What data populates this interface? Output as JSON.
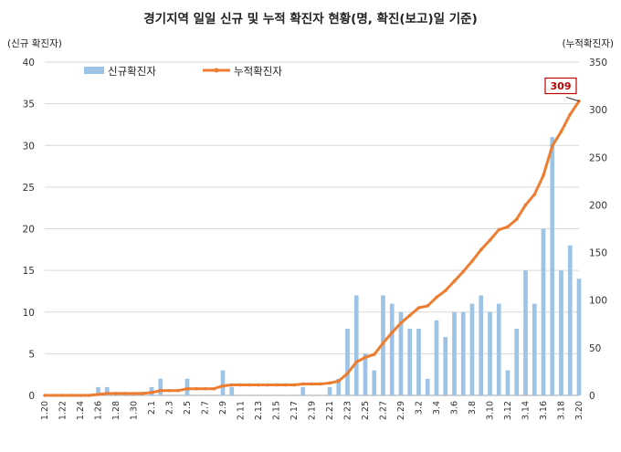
{
  "chart_data": {
    "type": "bar+line",
    "title": "경기지역 일일 신규 및 누적 확진자 현황(명, 확진(보고)일 기준)",
    "left_unit": "(신규 확진자)",
    "right_unit": "(누적확진자)",
    "left_ylim": [
      0,
      40
    ],
    "left_ticks": [
      0,
      5,
      10,
      15,
      20,
      25,
      30,
      35,
      40
    ],
    "right_ylim": [
      0,
      350
    ],
    "right_ticks": [
      0,
      50,
      100,
      150,
      200,
      250,
      300,
      350
    ],
    "grid": "horizontal",
    "legend_position": "top-left",
    "dates": [
      "1.20",
      "1.21",
      "1.22",
      "1.23",
      "1.24",
      "1.25",
      "1.26",
      "1.27",
      "1.28",
      "1.29",
      "1.30",
      "1.31",
      "2.1",
      "2.2",
      "2.3",
      "2.4",
      "2.5",
      "2.6",
      "2.7",
      "2.8",
      "2.9",
      "2.10",
      "2.11",
      "2.12",
      "2.13",
      "2.14",
      "2.15",
      "2.16",
      "2.17",
      "2.18",
      "2.19",
      "2.20",
      "2.21",
      "2.22",
      "2.23",
      "2.24",
      "2.25",
      "2.26",
      "2.27",
      "2.28",
      "2.29",
      "3.1",
      "3.2",
      "3.3",
      "3.4",
      "3.5",
      "3.6",
      "3.7",
      "3.8",
      "3.9",
      "3.10",
      "3.11",
      "3.12",
      "3.13",
      "3.14",
      "3.15",
      "3.16",
      "3.17",
      "3.18",
      "3.19",
      "3.20"
    ],
    "x_tick_labels": [
      "1.20",
      "1.22",
      "1.24",
      "1.26",
      "1.28",
      "1.30",
      "2.1",
      "2.3",
      "2.5",
      "2.7",
      "2.9",
      "2.11",
      "2.13",
      "2.15",
      "2.17",
      "2.19",
      "2.21",
      "2.23",
      "2.25",
      "2.27",
      "2.29",
      "3.2",
      "3.4",
      "3.6",
      "3.8",
      "3.10",
      "3.12",
      "3.14",
      "3.16",
      "3.18",
      "3.20"
    ],
    "series": [
      {
        "name": "신규확진자",
        "type": "bar",
        "axis": "left",
        "color": "#9dc3e6",
        "values": [
          0,
          0,
          0,
          0,
          0,
          0,
          1,
          1,
          0,
          0,
          0,
          0,
          1,
          2,
          0,
          0,
          2,
          0,
          0,
          0,
          3,
          1,
          0,
          0,
          0,
          0,
          0,
          0,
          0,
          1,
          0,
          0,
          1,
          2,
          8,
          12,
          5,
          3,
          12,
          11,
          10,
          8,
          8,
          2,
          9,
          7,
          10,
          10,
          11,
          12,
          10,
          11,
          3,
          8,
          15,
          11,
          20,
          31,
          15,
          18,
          14
        ]
      },
      {
        "name": "누적확진자",
        "type": "line",
        "axis": "right",
        "color": "#ed7d31",
        "values": [
          0,
          0,
          0,
          0,
          0,
          0,
          1,
          2,
          2,
          2,
          2,
          2,
          3,
          5,
          5,
          5,
          7,
          7,
          7,
          7,
          10,
          11,
          11,
          11,
          11,
          11,
          11,
          11,
          11,
          12,
          12,
          12,
          13,
          15,
          23,
          35,
          40,
          43,
          55,
          66,
          76,
          84,
          92,
          94,
          103,
          110,
          120,
          130,
          141,
          153,
          163,
          174,
          177,
          185,
          200,
          211,
          231,
          262,
          277,
          295,
          309
        ]
      }
    ],
    "annotation": {
      "label": "309",
      "series": "누적확진자",
      "date": "3.20"
    }
  }
}
